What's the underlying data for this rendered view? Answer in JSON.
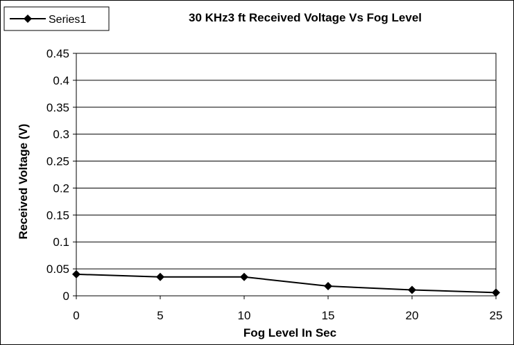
{
  "chart_data": {
    "type": "line",
    "title": "30 KHz3 ft Received Voltage Vs Fog Level",
    "xlabel": "Fog Level In Sec",
    "ylabel": "Received Voltage (V)",
    "x": [
      0,
      5,
      10,
      15,
      20,
      25
    ],
    "series": [
      {
        "name": "Series1",
        "values": [
          0.04,
          0.035,
          0.035,
          0.018,
          0.011,
          0.006
        ],
        "color": "#000000",
        "marker": "diamond"
      }
    ],
    "xlim": [
      0,
      25
    ],
    "ylim": [
      0,
      0.45
    ],
    "x_ticks": [
      "0",
      "5",
      "10",
      "15",
      "20",
      "25"
    ],
    "y_ticks": [
      "0",
      "0.05",
      "0.1",
      "0.15",
      "0.2",
      "0.25",
      "0.3",
      "0.35",
      "0.4",
      "0.45"
    ],
    "grid": "horizontal",
    "legend_position": "top-left",
    "colors": {
      "line": "#000000",
      "grid": "#000000",
      "background": "#ffffff"
    }
  }
}
